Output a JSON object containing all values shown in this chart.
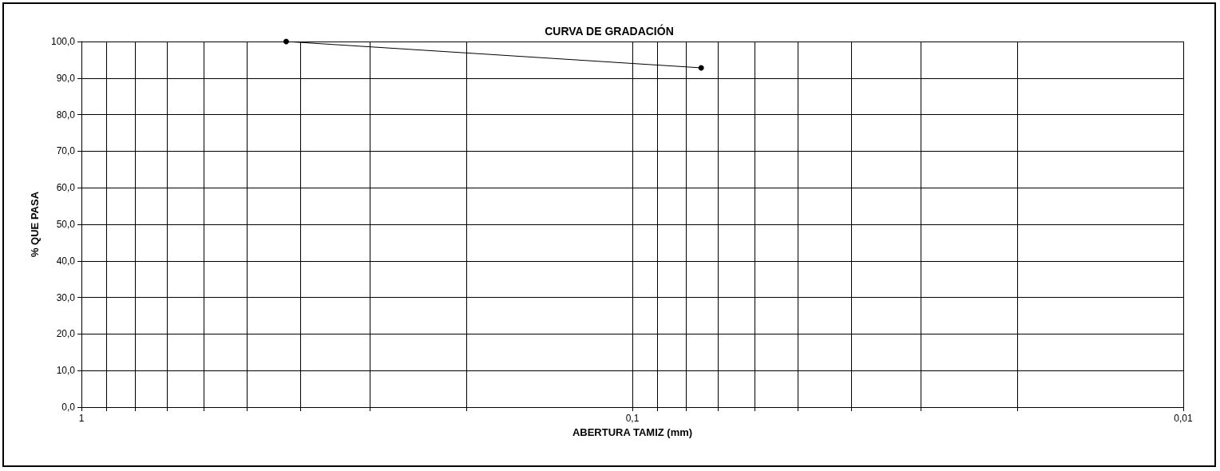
{
  "chart_data": {
    "type": "line",
    "title": "CURVA DE GRADACIÓN",
    "xlabel": "ABERTURA TAMIZ (mm)",
    "ylabel": "% QUE PASA",
    "x": [
      0.425,
      0.075
    ],
    "series": [
      {
        "color": "#000000",
        "values": [
          100,
          92.8
        ]
      }
    ],
    "log": "x",
    "xlim": [
      1,
      0.01
    ],
    "xticks": [
      {
        "value": 1,
        "label": "1"
      },
      {
        "value": 0.9,
        "label": null
      },
      {
        "value": 0.8,
        "label": null
      },
      {
        "value": 0.7,
        "label": null
      },
      {
        "value": 0.6,
        "label": null
      },
      {
        "value": 0.5,
        "label": null
      },
      {
        "value": 0.4,
        "label": null
      },
      {
        "value": 0.3,
        "label": null
      },
      {
        "value": 0.2,
        "label": null
      },
      {
        "value": 0.1,
        "label": "0,1"
      },
      {
        "value": 0.09,
        "label": null
      },
      {
        "value": 0.08,
        "label": null
      },
      {
        "value": 0.07,
        "label": null
      },
      {
        "value": 0.06,
        "label": null
      },
      {
        "value": 0.05,
        "label": null
      },
      {
        "value": 0.04,
        "label": null
      },
      {
        "value": 0.03,
        "label": null
      },
      {
        "value": 0.02,
        "label": null
      },
      {
        "value": 0.01,
        "label": "0,01"
      }
    ],
    "ylim": [
      0,
      100
    ],
    "yticks": [
      {
        "value": 0,
        "label": "0,0"
      },
      {
        "value": 10,
        "label": "10,0"
      },
      {
        "value": 20,
        "label": "20,0"
      },
      {
        "value": 30,
        "label": "30,0"
      },
      {
        "value": 40,
        "label": "40,0"
      },
      {
        "value": 50,
        "label": "50,0"
      },
      {
        "value": 60,
        "label": "60,0"
      },
      {
        "value": 70,
        "label": "70,0"
      },
      {
        "value": 80,
        "label": "80,0"
      },
      {
        "value": 90,
        "label": "90,0"
      },
      {
        "value": 100,
        "label": "100,0"
      }
    ],
    "grid": true,
    "marker": "circle",
    "line_style": "solid"
  }
}
